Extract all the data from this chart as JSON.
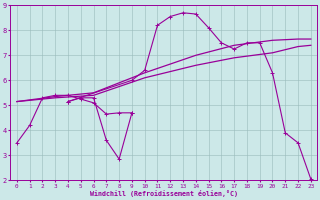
{
  "bg_color": "#cce8e8",
  "line_color": "#990099",
  "grid_color": "#99bbbb",
  "xlabel": "Windchill (Refroidissement éolien,°C)",
  "xlim": [
    -0.5,
    23.5
  ],
  "ylim": [
    2,
    9
  ],
  "yticks": [
    2,
    3,
    4,
    5,
    6,
    7,
    8,
    9
  ],
  "xticks": [
    0,
    1,
    2,
    3,
    4,
    5,
    6,
    7,
    8,
    9,
    10,
    11,
    12,
    13,
    14,
    15,
    16,
    17,
    18,
    19,
    20,
    21,
    22,
    23
  ],
  "line1_x": [
    0,
    1,
    2,
    3,
    4,
    5,
    6,
    7,
    8,
    9
  ],
  "line1_y": [
    3.5,
    4.2,
    5.3,
    5.4,
    5.4,
    5.25,
    5.1,
    4.65,
    4.7,
    4.7
  ],
  "line2_x": [
    4,
    5,
    6,
    7,
    8,
    9
  ],
  "line2_y": [
    5.15,
    5.3,
    5.3,
    3.6,
    2.85,
    4.7
  ],
  "line3_x": [
    4,
    9,
    10,
    11,
    12,
    13,
    14,
    15,
    16,
    17,
    18,
    19,
    20,
    21,
    22,
    23
  ],
  "line3_y": [
    5.15,
    6.0,
    6.4,
    8.2,
    8.55,
    8.7,
    8.65,
    8.1,
    7.5,
    7.25,
    7.5,
    7.5,
    6.3,
    3.9,
    3.5,
    2.05
  ],
  "smooth1_x": [
    0,
    3,
    6,
    10,
    14,
    17,
    20,
    22,
    23
  ],
  "smooth1_y": [
    5.15,
    5.3,
    5.4,
    6.1,
    6.6,
    6.9,
    7.1,
    7.35,
    7.4
  ],
  "smooth2_x": [
    0,
    3,
    6,
    10,
    14,
    17,
    20,
    22,
    23
  ],
  "smooth2_y": [
    5.15,
    5.35,
    5.5,
    6.3,
    7.0,
    7.4,
    7.6,
    7.65,
    7.65
  ]
}
